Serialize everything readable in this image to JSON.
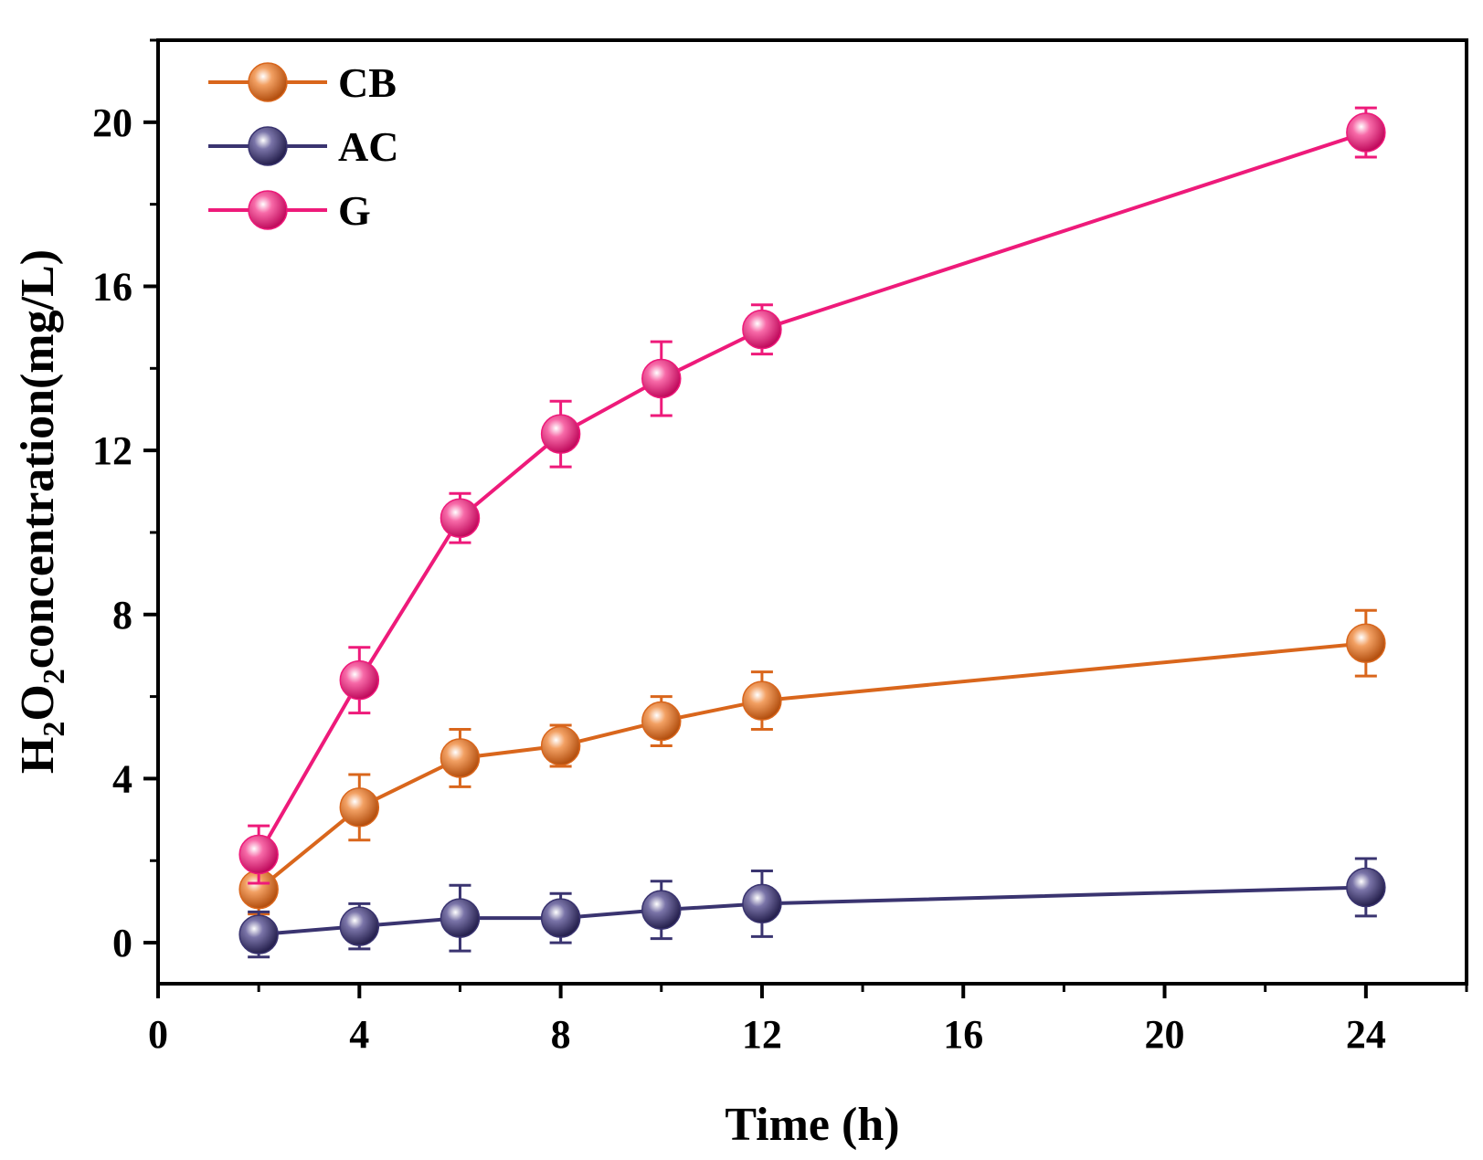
{
  "chart_data": {
    "type": "line",
    "title": "",
    "xlabel": "Time (h)",
    "ylabel_parts": [
      "H",
      "2",
      "O",
      "2",
      "concentration(mg/L)"
    ],
    "xlim": [
      0,
      26
    ],
    "ylim": [
      -1,
      22
    ],
    "xticks": [
      0,
      4,
      8,
      12,
      16,
      20,
      24
    ],
    "yticks": [
      0,
      4,
      8,
      12,
      16,
      20
    ],
    "x": [
      2,
      4,
      6,
      8,
      10,
      12,
      24
    ],
    "series": [
      {
        "name": "CB",
        "color": "#d9661c",
        "values": [
          1.3,
          3.3,
          4.5,
          4.8,
          5.4,
          5.9,
          7.3
        ],
        "errors": [
          0.6,
          0.8,
          0.7,
          0.5,
          0.6,
          0.7,
          0.8
        ]
      },
      {
        "name": "AC",
        "color": "#3a3470",
        "values": [
          0.2,
          0.4,
          0.6,
          0.6,
          0.8,
          0.95,
          1.35
        ],
        "errors": [
          0.55,
          0.55,
          0.8,
          0.6,
          0.7,
          0.8,
          0.7
        ]
      },
      {
        "name": "G",
        "color": "#ee1a7a",
        "values": [
          2.15,
          6.4,
          10.35,
          12.4,
          13.75,
          14.95,
          19.75
        ],
        "errors": [
          0.7,
          0.8,
          0.6,
          0.8,
          0.9,
          0.6,
          0.6
        ]
      }
    ],
    "legend": "top-left",
    "grid": false
  }
}
